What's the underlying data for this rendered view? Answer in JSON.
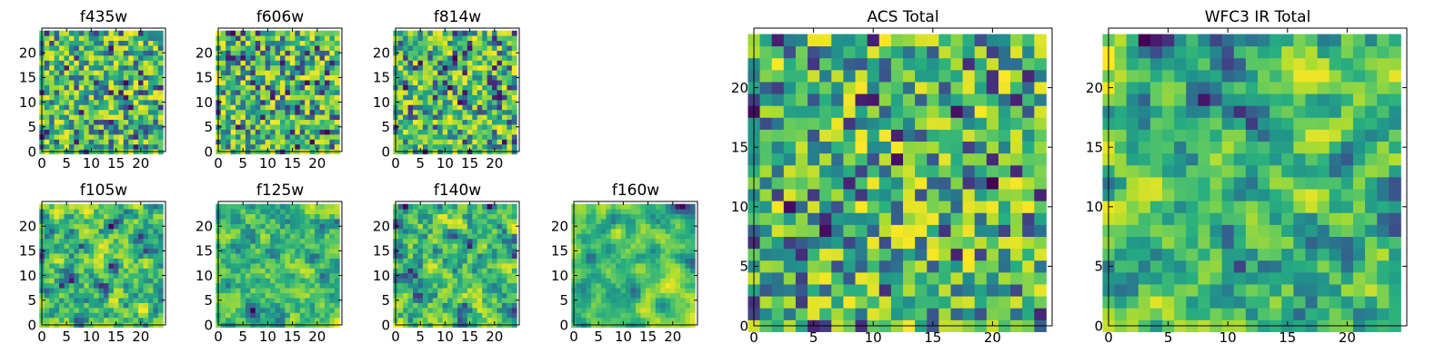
{
  "chart_data": [
    {
      "type": "heatmap",
      "title": "f435w",
      "xlim": [
        0,
        25
      ],
      "ylim": [
        0,
        25
      ],
      "xticks": [
        "0",
        "5",
        "10",
        "15",
        "20"
      ],
      "yticks": [
        "0",
        "5",
        "10",
        "15",
        "20"
      ],
      "colormap": "viridis",
      "grid": false
    },
    {
      "type": "heatmap",
      "title": "f606w",
      "xlim": [
        0,
        25
      ],
      "ylim": [
        0,
        25
      ],
      "xticks": [
        "0",
        "5",
        "10",
        "15",
        "20"
      ],
      "yticks": [
        "0",
        "5",
        "10",
        "15",
        "20"
      ],
      "colormap": "viridis",
      "grid": false
    },
    {
      "type": "heatmap",
      "title": "f814w",
      "xlim": [
        0,
        25
      ],
      "ylim": [
        0,
        25
      ],
      "xticks": [
        "0",
        "5",
        "10",
        "15",
        "20"
      ],
      "yticks": [
        "0",
        "5",
        "10",
        "15",
        "20"
      ],
      "colormap": "viridis",
      "grid": false
    },
    {
      "type": "heatmap",
      "title": "f105w",
      "xlim": [
        0,
        25
      ],
      "ylim": [
        0,
        25
      ],
      "xticks": [
        "0",
        "5",
        "10",
        "15",
        "20"
      ],
      "yticks": [
        "0",
        "5",
        "10",
        "15",
        "20"
      ],
      "colormap": "viridis",
      "grid": false
    },
    {
      "type": "heatmap",
      "title": "f125w",
      "xlim": [
        0,
        25
      ],
      "ylim": [
        0,
        25
      ],
      "xticks": [
        "0",
        "5",
        "10",
        "15",
        "20"
      ],
      "yticks": [
        "0",
        "5",
        "10",
        "15",
        "20"
      ],
      "colormap": "viridis",
      "grid": false
    },
    {
      "type": "heatmap",
      "title": "f140w",
      "xlim": [
        0,
        25
      ],
      "ylim": [
        0,
        25
      ],
      "xticks": [
        "0",
        "5",
        "10",
        "15",
        "20"
      ],
      "yticks": [
        "0",
        "5",
        "10",
        "15",
        "20"
      ],
      "colormap": "viridis",
      "grid": false
    },
    {
      "type": "heatmap",
      "title": "f160w",
      "xlim": [
        0,
        25
      ],
      "ylim": [
        0,
        25
      ],
      "xticks": [
        "0",
        "5",
        "10",
        "15",
        "20"
      ],
      "yticks": [
        "0",
        "5",
        "10",
        "15",
        "20"
      ],
      "colormap": "viridis",
      "grid": false
    },
    {
      "type": "heatmap",
      "title": "ACS Total",
      "xlim": [
        0,
        25
      ],
      "ylim": [
        0,
        25
      ],
      "xticks": [
        "0",
        "5",
        "10",
        "15",
        "20"
      ],
      "yticks": [
        "0",
        "5",
        "10",
        "15",
        "20"
      ],
      "colormap": "viridis",
      "grid": false
    },
    {
      "type": "heatmap",
      "title": "WFC3 IR Total",
      "xlim": [
        0,
        25
      ],
      "ylim": [
        0,
        25
      ],
      "xticks": [
        "0",
        "5",
        "10",
        "15",
        "20"
      ],
      "yticks": [
        "0",
        "5",
        "10",
        "15",
        "20"
      ],
      "colormap": "viridis",
      "grid": false
    }
  ],
  "colors": {
    "viridis_dark": "#440154",
    "viridis_mid": "#21918c",
    "viridis_bright": "#fde725"
  }
}
